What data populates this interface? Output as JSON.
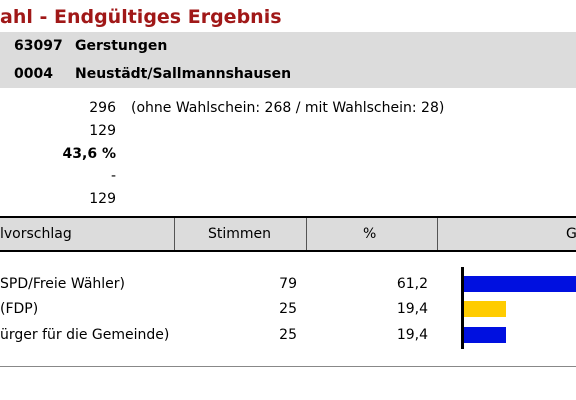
{
  "header": {
    "title": "ahl - Endgültiges Ergebnis"
  },
  "location": {
    "municipality_code": "63097",
    "municipality_name": "Gerstungen",
    "district_code": "0004",
    "district_name": "Neustädt/Sallmannshausen"
  },
  "stats": {
    "eligible": "296",
    "eligible_note": "(ohne Wahlschein: 268 / mit Wahlschein: 28)",
    "voters": "129",
    "turnout": "43,6 %",
    "invalid": "-",
    "valid": "129"
  },
  "table": {
    "col_party": "lvorschlag",
    "col_votes": "Stimmen",
    "col_pct": "%",
    "col_graph": "G"
  },
  "rows": [
    {
      "party": "SPD/Freie Wähler)",
      "votes": "79",
      "pct": "61,2",
      "color": "#0010e0"
    },
    {
      "party": "(FDP)",
      "votes": "25",
      "pct": "19,4",
      "color": "#ffcc00"
    },
    {
      "party": "ürger für die Gemeinde)",
      "votes": "25",
      "pct": "19,4",
      "color": "#0010e0"
    }
  ],
  "chart_data": {
    "type": "bar",
    "categories": [
      "SPD/Freie Wähler)",
      "(FDP)",
      "ürger für die Gemeinde)"
    ],
    "values": [
      61.2,
      19.4,
      19.4
    ],
    "colors": [
      "#0010e0",
      "#ffcc00",
      "#0010e0"
    ]
  }
}
